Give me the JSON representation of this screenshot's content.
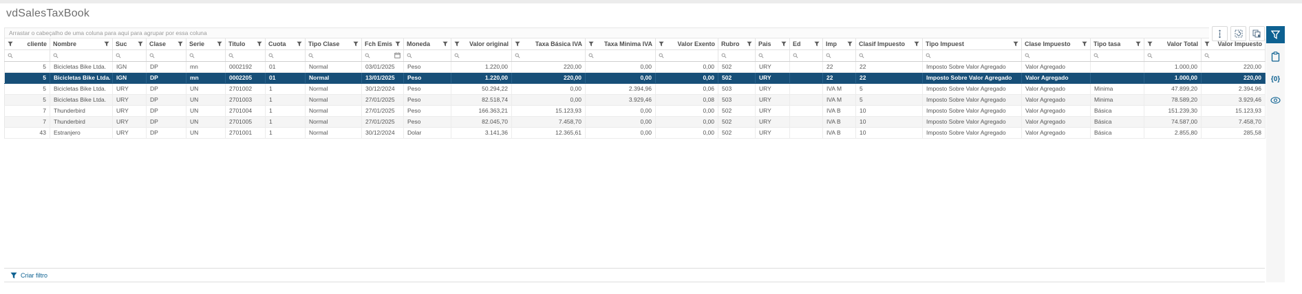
{
  "page": {
    "title": "vdSalesTaxBook"
  },
  "group_panel": {
    "text": "Arrastar o cabeçalho de uma coluna para aqui para agrupar por essa coluna"
  },
  "toolbar": {
    "buttons": [
      {
        "id": "fit-columns",
        "icon": "column-resize-icon"
      },
      {
        "id": "refresh-grid",
        "icon": "refresh-grid-icon"
      },
      {
        "id": "copy-grid",
        "icon": "copy-export-icon"
      }
    ]
  },
  "side_rail": {
    "filter_toggle_icon": "filter-funnel-icon",
    "items": [
      {
        "id": "clipboard",
        "icon": "clipboard-icon",
        "label": ""
      },
      {
        "id": "braces",
        "icon": "braces-icon",
        "label": "{0}"
      },
      {
        "id": "visibility",
        "icon": "eye-icon",
        "label": ""
      }
    ]
  },
  "filter_builder": {
    "label": "Criar filtro"
  },
  "colors": {
    "accent": "#0d6191",
    "selected_row": "#174f78",
    "alt_row": "#f5f5f5"
  },
  "grid": {
    "selected_row_index": 1,
    "columns": [
      {
        "key": "cliente",
        "label": "cliente",
        "align": "right"
      },
      {
        "key": "nombre",
        "label": "Nombre",
        "align": "left"
      },
      {
        "key": "suc",
        "label": "Suc",
        "align": "left"
      },
      {
        "key": "clase",
        "label": "Clase",
        "align": "left"
      },
      {
        "key": "serie",
        "label": "Serie",
        "align": "left"
      },
      {
        "key": "titulo",
        "label": "Titulo",
        "align": "left"
      },
      {
        "key": "cuota",
        "label": "Cuota",
        "align": "left"
      },
      {
        "key": "tipo_clase",
        "label": "Tipo Clase",
        "align": "left"
      },
      {
        "key": "fch_emis",
        "label": "Fch Emis",
        "align": "left",
        "calendar_in_filter": true
      },
      {
        "key": "moneda",
        "label": "Moneda",
        "align": "left"
      },
      {
        "key": "valor_original",
        "label": "Valor original",
        "align": "right"
      },
      {
        "key": "taxa_basica_iva",
        "label": "Taxa Básica IVA",
        "align": "right"
      },
      {
        "key": "taxa_minima_iva",
        "label": "Taxa Minima IVA",
        "align": "right"
      },
      {
        "key": "valor_exento",
        "label": "Valor Exento",
        "align": "right"
      },
      {
        "key": "rubro",
        "label": "Rubro",
        "align": "left"
      },
      {
        "key": "pais",
        "label": "Pais",
        "align": "left"
      },
      {
        "key": "ed",
        "label": "Ed",
        "align": "left"
      },
      {
        "key": "imp",
        "label": "Imp",
        "align": "left"
      },
      {
        "key": "clasif_impuesto",
        "label": "Clasif Impuesto",
        "align": "left"
      },
      {
        "key": "tipo_impuest",
        "label": "Tipo Impuest",
        "align": "left"
      },
      {
        "key": "clase_impuesto",
        "label": "Clase Impuesto",
        "align": "left"
      },
      {
        "key": "tipo_tasa",
        "label": "Tipo tasa",
        "align": "left"
      },
      {
        "key": "valor_total",
        "label": "Valor Total",
        "align": "right"
      },
      {
        "key": "valor_impuesto",
        "label": "Valor Impuesto",
        "align": "right"
      }
    ],
    "rows": [
      [
        "5",
        "Bicicletas Bike Ltda.",
        "IGN",
        "DP",
        "mn",
        "0002192",
        "01",
        "Normal",
        "03/01/2025",
        "Peso",
        "1.220,00",
        "220,00",
        "0,00",
        "0,00",
        "502",
        "URY",
        "",
        "22",
        "22",
        "Imposto Sobre Valor Agregado",
        "Valor Agregado",
        "",
        "1.000,00",
        "220,00"
      ],
      [
        "5",
        "Bicicletas Bike Ltda.",
        "IGN",
        "DP",
        "mn",
        "0002205",
        "01",
        "Normal",
        "13/01/2025",
        "Peso",
        "1.220,00",
        "220,00",
        "0,00",
        "0,00",
        "502",
        "URY",
        "",
        "22",
        "22",
        "Imposto Sobre Valor Agregado",
        "Valor Agregado",
        "",
        "1.000,00",
        "220,00"
      ],
      [
        "5",
        "Bicicletas Bike Ltda.",
        "URY",
        "DP",
        "UN",
        "2701002",
        "1",
        "Normal",
        "30/12/2024",
        "Peso",
        "50.294,22",
        "0,00",
        "2.394,96",
        "0,06",
        "503",
        "URY",
        "",
        "IVA M",
        "5",
        "Imposto Sobre Valor Agregado",
        "Valor Agregado",
        "Minima",
        "47.899,20",
        "2.394,96"
      ],
      [
        "5",
        "Bicicletas Bike Ltda.",
        "URY",
        "DP",
        "UN",
        "2701003",
        "1",
        "Normal",
        "27/01/2025",
        "Peso",
        "82.518,74",
        "0,00",
        "3.929,46",
        "0,08",
        "503",
        "URY",
        "",
        "IVA M",
        "5",
        "Imposto Sobre Valor Agregado",
        "Valor Agregado",
        "Minima",
        "78.589,20",
        "3.929,46"
      ],
      [
        "7",
        "Thunderbird",
        "URY",
        "DP",
        "UN",
        "2701004",
        "1",
        "Normal",
        "27/01/2025",
        "Peso",
        "166.363,21",
        "15.123,93",
        "0,00",
        "0,00",
        "502",
        "URY",
        "",
        "IVA B",
        "10",
        "Imposto Sobre Valor Agregado",
        "Valor Agregado",
        "Básica",
        "151.239,30",
        "15.123,93"
      ],
      [
        "7",
        "Thunderbird",
        "URY",
        "DP",
        "UN",
        "2701005",
        "1",
        "Normal",
        "27/01/2025",
        "Peso",
        "82.045,70",
        "7.458,70",
        "0,00",
        "0,00",
        "502",
        "URY",
        "",
        "IVA B",
        "10",
        "Imposto Sobre Valor Agregado",
        "Valor Agregado",
        "Básica",
        "74.587,00",
        "7.458,70"
      ],
      [
        "43",
        "Estranjero",
        "URY",
        "DP",
        "UN",
        "2701001",
        "1",
        "Normal",
        "30/12/2024",
        "Dolar",
        "3.141,36",
        "12.365,61",
        "0,00",
        "0,00",
        "502",
        "URY",
        "",
        "IVA B",
        "10",
        "Imposto Sobre Valor Agregado",
        "Valor Agregado",
        "Básica",
        "2.855,80",
        "285,58"
      ]
    ]
  }
}
